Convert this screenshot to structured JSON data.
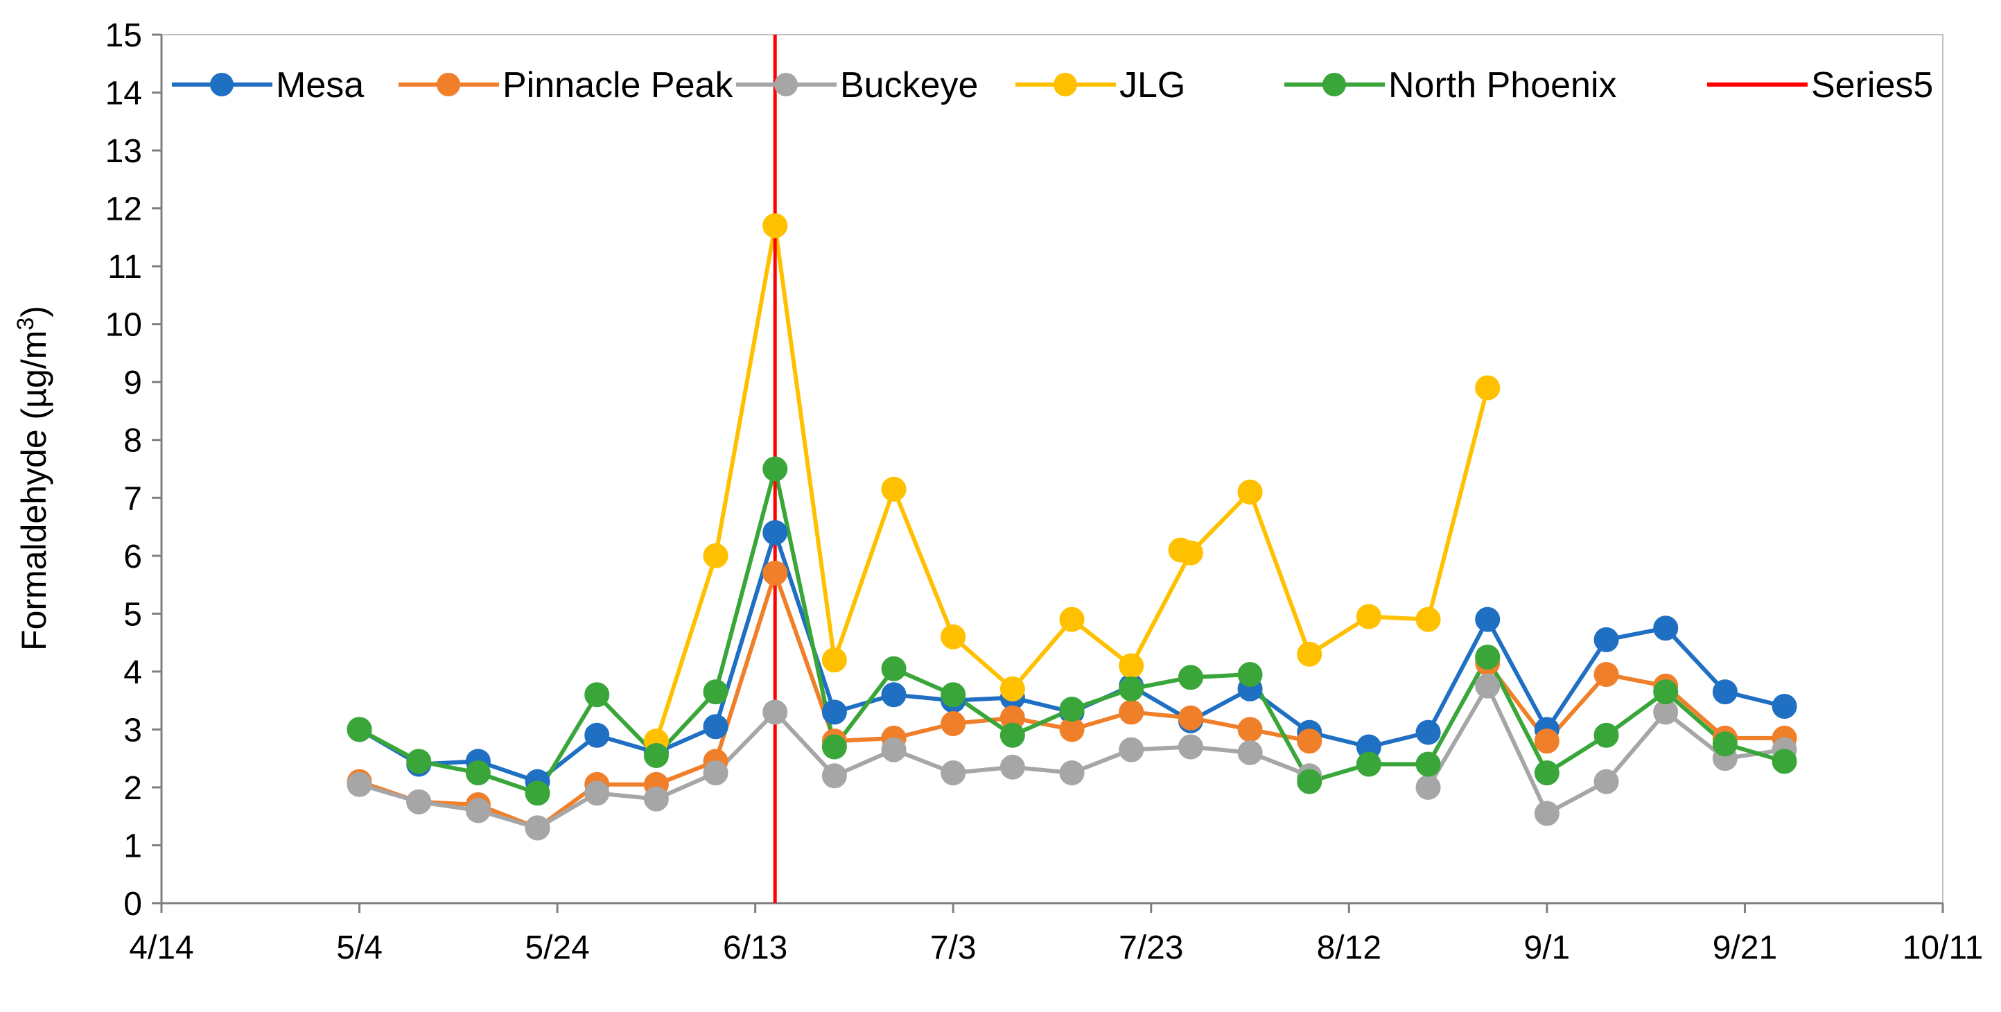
{
  "chart_data": {
    "type": "line",
    "title": "",
    "xlabel": "",
    "ylabel": "Formaldehyde (µg/m",
    "ylabel_superscript": "3",
    "ylabel_suffix": ")",
    "ylim": [
      0,
      15
    ],
    "yticks": [
      0,
      1,
      2,
      3,
      4,
      5,
      6,
      7,
      8,
      9,
      10,
      11,
      12,
      13,
      14,
      15
    ],
    "xlim_day": [
      0,
      180
    ],
    "xticks": [
      {
        "label": "4/14",
        "day": 0
      },
      {
        "label": "5/4",
        "day": 20
      },
      {
        "label": "5/24",
        "day": 40
      },
      {
        "label": "6/13",
        "day": 60
      },
      {
        "label": "7/3",
        "day": 80
      },
      {
        "label": "7/23",
        "day": 100
      },
      {
        "label": "8/12",
        "day": 120
      },
      {
        "label": "9/1",
        "day": 140
      },
      {
        "label": "9/21",
        "day": 160
      },
      {
        "label": "10/11",
        "day": 180
      }
    ],
    "x_days": [
      20,
      26,
      32,
      38,
      44,
      50,
      56,
      62,
      68,
      74,
      80,
      86,
      92,
      98,
      104,
      110,
      116,
      122,
      128,
      134,
      140,
      146,
      152,
      158,
      164
    ],
    "series": [
      {
        "name": "Mesa",
        "color": "#1f6fc2",
        "values": [
          3.0,
          2.4,
          2.45,
          2.1,
          2.9,
          2.6,
          3.05,
          6.4,
          3.3,
          3.6,
          3.5,
          3.55,
          3.3,
          3.75,
          3.15,
          3.7,
          2.95,
          2.7,
          2.95,
          4.9,
          3.0,
          4.55,
          4.75,
          3.65,
          3.4
        ]
      },
      {
        "name": "Pinnacle Peak",
        "color": "#f07f2a",
        "values": [
          2.1,
          1.75,
          1.7,
          1.3,
          2.05,
          2.05,
          2.45,
          5.7,
          2.8,
          2.85,
          3.1,
          3.2,
          3.0,
          3.3,
          3.2,
          3.0,
          2.8,
          null,
          null,
          4.15,
          2.8,
          3.95,
          3.75,
          2.85,
          2.85
        ]
      },
      {
        "name": "Buckeye",
        "color": "#a6a6a6",
        "values": [
          2.05,
          1.75,
          1.6,
          1.3,
          1.9,
          1.8,
          2.25,
          3.3,
          2.2,
          2.65,
          2.25,
          2.35,
          2.25,
          2.65,
          2.7,
          2.6,
          2.2,
          null,
          2.0,
          3.75,
          1.55,
          2.1,
          3.3,
          2.5,
          2.65
        ]
      },
      {
        "name": "JLG",
        "color": "#ffc000",
        "values": [
          null,
          null,
          null,
          null,
          null,
          2.8,
          6.0,
          11.7,
          4.2,
          7.15,
          4.6,
          3.7,
          4.9,
          4.1,
          6.05,
          7.1,
          4.3,
          4.95,
          4.9,
          8.9,
          null,
          null,
          null,
          null,
          null
        ],
        "extra_points": [
          {
            "day": 103,
            "value": 6.1
          }
        ]
      },
      {
        "name": "North Phoenix",
        "color": "#3aa63a",
        "values": [
          3.0,
          2.45,
          2.25,
          1.9,
          3.6,
          2.55,
          3.65,
          7.5,
          2.7,
          4.05,
          3.6,
          2.9,
          3.35,
          3.7,
          3.9,
          3.95,
          2.1,
          2.4,
          2.4,
          4.25,
          2.25,
          2.9,
          3.65,
          2.75,
          2.45
        ]
      }
    ],
    "vertical_line": {
      "name": "Series5",
      "day": 62,
      "color": "#ff0000"
    },
    "legend_position": "top"
  }
}
